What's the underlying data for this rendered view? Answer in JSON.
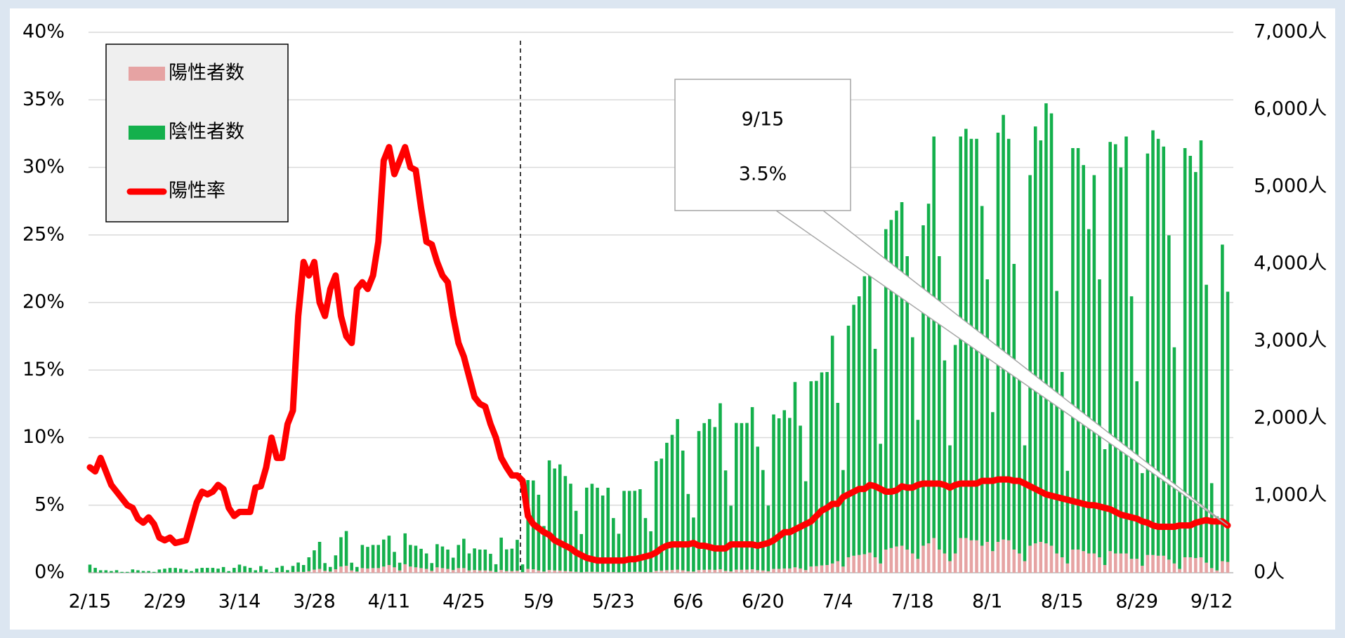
{
  "chart_data": {
    "type": "combo",
    "categories": [
      "2/15",
      null,
      null,
      null,
      null,
      null,
      null,
      null,
      null,
      null,
      null,
      null,
      null,
      null,
      "2/29",
      null,
      null,
      null,
      null,
      null,
      null,
      null,
      null,
      null,
      null,
      null,
      null,
      null,
      "3/14",
      null,
      null,
      null,
      null,
      null,
      null,
      null,
      null,
      null,
      null,
      null,
      null,
      null,
      "3/28",
      null,
      null,
      null,
      null,
      null,
      null,
      null,
      null,
      null,
      null,
      null,
      null,
      null,
      "4/11",
      null,
      null,
      null,
      null,
      null,
      null,
      null,
      null,
      null,
      null,
      null,
      null,
      null,
      "4/25",
      null,
      null,
      null,
      null,
      null,
      null,
      null,
      null,
      null,
      null,
      null,
      null,
      null,
      "5/9",
      null,
      null,
      null,
      null,
      null,
      null,
      null,
      null,
      null,
      null,
      null,
      null,
      null,
      "5/23",
      null,
      null,
      null,
      null,
      null,
      null,
      null,
      null,
      null,
      null,
      null,
      null,
      null,
      "6/6",
      null,
      null,
      null,
      null,
      null,
      null,
      null,
      null,
      null,
      null,
      null,
      null,
      null,
      "6/20",
      null,
      null,
      null,
      null,
      null,
      null,
      null,
      null,
      null,
      null,
      null,
      null,
      null,
      "7/4",
      null,
      null,
      null,
      null,
      null,
      null,
      null,
      null,
      null,
      null,
      null,
      null,
      null,
      "7/18",
      null,
      null,
      null,
      null,
      null,
      null,
      null,
      null,
      null,
      null,
      null,
      null,
      null,
      "8/1",
      null,
      null,
      null,
      null,
      null,
      null,
      null,
      null,
      null,
      null,
      null,
      null,
      null,
      "8/15",
      null,
      null,
      null,
      null,
      null,
      null,
      null,
      null,
      null,
      null,
      null,
      null,
      null,
      "8/29",
      null,
      null,
      null,
      null,
      null,
      null,
      null,
      null,
      null,
      null,
      null,
      null,
      null,
      "9/12",
      null,
      null,
      null
    ],
    "series": [
      {
        "name": "陽性者数",
        "type": "bar",
        "axis": "y2",
        "color": "#e6a3a3",
        "values": [
          5,
          3,
          2,
          2,
          2,
          3,
          1,
          1,
          3,
          2,
          2,
          2,
          1,
          2,
          2,
          2,
          2,
          2,
          1,
          1,
          3,
          3,
          3,
          3,
          3,
          4,
          1,
          3,
          5,
          5,
          4,
          2,
          6,
          3,
          1,
          5,
          8,
          4,
          8,
          12,
          10,
          20,
          40,
          50,
          25,
          15,
          45,
          80,
          90,
          30,
          15,
          60,
          55,
          60,
          60,
          80,
          100,
          70,
          30,
          110,
          80,
          70,
          60,
          50,
          25,
          70,
          60,
          50,
          35,
          60,
          60,
          30,
          35,
          30,
          30,
          25,
          10,
          35,
          22,
          22,
          26,
          8,
          50,
          45,
          30,
          15,
          35,
          30,
          28,
          22,
          18,
          12,
          6,
          12,
          12,
          11,
          10,
          11,
          8,
          5,
          10,
          10,
          11,
          12,
          8,
          7,
          25,
          28,
          33,
          36,
          40,
          32,
          20,
          15,
          35,
          38,
          40,
          37,
          45,
          25,
          18,
          40,
          38,
          40,
          45,
          33,
          30,
          20,
          50,
          50,
          55,
          55,
          70,
          55,
          35,
          80,
          85,
          95,
          100,
          120,
          150,
          80,
          200,
          220,
          230,
          240,
          260,
          200,
          120,
          300,
          320,
          340,
          350,
          300,
          250,
          180,
          350,
          380,
          450,
          300,
          250,
          150,
          250,
          450,
          450,
          420,
          420,
          350,
          400,
          280,
          400,
          430,
          420,
          300,
          250,
          150,
          350,
          380,
          400,
          380,
          350,
          250,
          200,
          120,
          300,
          300,
          280,
          250,
          250,
          200,
          100,
          280,
          250,
          250,
          250,
          180,
          180,
          90,
          230,
          230,
          220,
          220,
          170,
          120,
          50,
          200,
          200,
          190,
          200,
          130,
          60,
          30,
          150,
          140
        ]
      },
      {
        "name": "陰性者数",
        "type": "bar",
        "axis": "y2",
        "color": "#14b04c",
        "values": [
          100,
          60,
          30,
          30,
          20,
          30,
          10,
          10,
          40,
          30,
          20,
          20,
          10,
          40,
          50,
          60,
          60,
          50,
          40,
          20,
          50,
          60,
          60,
          60,
          50,
          70,
          20,
          60,
          100,
          80,
          60,
          30,
          80,
          40,
          10,
          60,
          80,
          30,
          80,
          120,
          90,
          180,
          250,
          350,
          100,
          60,
          180,
          380,
          450,
          100,
          60,
          300,
          280,
          300,
          300,
          350,
          380,
          200,
          100,
          400,
          280,
          280,
          250,
          200,
          100,
          300,
          280,
          250,
          160,
          300,
          380,
          220,
          280,
          270,
          270,
          220,
          100,
          420,
          280,
          290,
          400,
          100,
          1150,
          1150,
          980,
          590,
          1420,
          1320,
          1375,
          1230,
          1135,
          790,
          495,
          1090,
          1140,
          1090,
          990,
          1090,
          700,
          500,
          1050,
          1050,
          1050,
          1070,
          700,
          530,
          1420,
          1450,
          1650,
          1750,
          1950,
          1550,
          1000,
          700,
          1800,
          1900,
          1950,
          1850,
          2150,
          1300,
          850,
          1900,
          1900,
          1900,
          2100,
          1600,
          1300,
          850,
          2000,
          1950,
          2050,
          1950,
          2400,
          1850,
          1150,
          2400,
          2400,
          2500,
          2500,
          2950,
          2050,
          1250,
          3000,
          3250,
          3350,
          3600,
          3700,
          2700,
          1550,
          4150,
          4250,
          4350,
          4450,
          3800,
          2800,
          1800,
          4150,
          4400,
          5200,
          3800,
          2500,
          1500,
          2700,
          5200,
          5300,
          5200,
          5200,
          4400,
          3400,
          1800,
          5300,
          5500,
          5200,
          3700,
          2400,
          1500,
          4800,
          5400,
          5200,
          5700,
          5600,
          3400,
          2400,
          1200,
          5200,
          5200,
          5000,
          4200,
          4900,
          3600,
          1500,
          5300,
          5300,
          5000,
          5400,
          3400,
          2300,
          1200,
          5200,
          5500,
          5400,
          5300,
          4200,
          2800,
          1000,
          5300,
          5200,
          5000,
          5400,
          3600,
          1100,
          700,
          4100,
          3500
        ]
      },
      {
        "name": "陽性率",
        "type": "line",
        "axis": "y",
        "color": "#ff0000",
        "values": [
          7.8,
          7.5,
          8.5,
          7.5,
          6.5,
          6,
          5.5,
          5,
          4.8,
          4,
          3.7,
          4.1,
          3.6,
          2.6,
          2.4,
          2.6,
          2.2,
          2.3,
          2.4,
          3.8,
          5.2,
          6,
          5.8,
          6,
          6.5,
          6.2,
          4.8,
          4.2,
          4.5,
          4.5,
          4.5,
          6.3,
          6.4,
          7.8,
          10,
          8.5,
          8.5,
          11,
          12,
          19,
          23,
          22,
          23,
          20,
          19,
          21,
          22,
          19,
          17.5,
          17,
          21,
          21.5,
          21,
          22,
          24.5,
          30.5,
          31.5,
          29.5,
          30.5,
          31.5,
          30,
          29.8,
          27,
          24.5,
          24.3,
          23,
          22,
          21.5,
          19,
          17,
          16,
          14.5,
          13,
          12.5,
          12.3,
          11,
          10,
          8.5,
          7.8,
          7.2,
          7.2,
          6.8,
          4.2,
          3.6,
          3.3,
          3,
          2.8,
          2.4,
          2.2,
          2,
          1.8,
          1.5,
          1.3,
          1.1,
          1,
          0.9,
          0.9,
          0.9,
          0.9,
          0.9,
          0.9,
          1,
          1,
          1.1,
          1.2,
          1.3,
          1.5,
          1.8,
          2,
          2.1,
          2.1,
          2.1,
          2.1,
          2.2,
          2,
          2,
          1.9,
          1.8,
          1.8,
          1.8,
          2.1,
          2.1,
          2.1,
          2.1,
          2.1,
          2,
          2.1,
          2.2,
          2.4,
          2.7,
          3,
          3,
          3.2,
          3.4,
          3.6,
          3.8,
          4.2,
          4.6,
          4.8,
          5.1,
          5.1,
          5.6,
          5.8,
          6,
          6.2,
          6.2,
          6.5,
          6.4,
          6.2,
          6,
          6,
          6.1,
          6.4,
          6.3,
          6.3,
          6.5,
          6.6,
          6.6,
          6.6,
          6.6,
          6.5,
          6.3,
          6.5,
          6.6,
          6.6,
          6.6,
          6.6,
          6.8,
          6.8,
          6.8,
          6.9,
          6.9,
          6.9,
          6.8,
          6.8,
          6.6,
          6.4,
          6.2,
          6,
          5.8,
          5.7,
          5.6,
          5.5,
          5.4,
          5.3,
          5.2,
          5.1,
          5,
          5,
          4.9,
          4.8,
          4.7,
          4.5,
          4.3,
          4.2,
          4.1,
          4,
          3.8,
          3.7,
          3.5,
          3.4,
          3.4,
          3.4,
          3.4,
          3.5,
          3.5,
          3.5,
          3.7,
          3.8,
          3.9,
          3.8,
          3.8,
          3.8,
          3.5
        ]
      }
    ],
    "ylim": [
      0,
      40
    ],
    "yticks": [
      {
        "value": 0,
        "label": "0%"
      },
      {
        "value": 5,
        "label": "5%"
      },
      {
        "value": 10,
        "label": "10%"
      },
      {
        "value": 15,
        "label": "15%"
      },
      {
        "value": 20,
        "label": "20%"
      },
      {
        "value": 25,
        "label": "25%"
      },
      {
        "value": 30,
        "label": "30%"
      },
      {
        "value": 35,
        "label": "35%"
      },
      {
        "value": 40,
        "label": "40%"
      }
    ],
    "y2lim": [
      0,
      7000
    ],
    "y2ticks": [
      {
        "value": 0,
        "label": "0人"
      },
      {
        "value": 1000,
        "label": "1,000人"
      },
      {
        "value": 2000,
        "label": "2,000人"
      },
      {
        "value": 3000,
        "label": "3,000人"
      },
      {
        "value": 4000,
        "label": "4,000人"
      },
      {
        "value": 5000,
        "label": "5,000人"
      },
      {
        "value": 6000,
        "label": "6,000人"
      },
      {
        "value": 7000,
        "label": "7,000人"
      }
    ],
    "grid": true,
    "legend": "upper left",
    "annotation": {
      "lines": [
        "9/15",
        "3.5%"
      ]
    }
  }
}
